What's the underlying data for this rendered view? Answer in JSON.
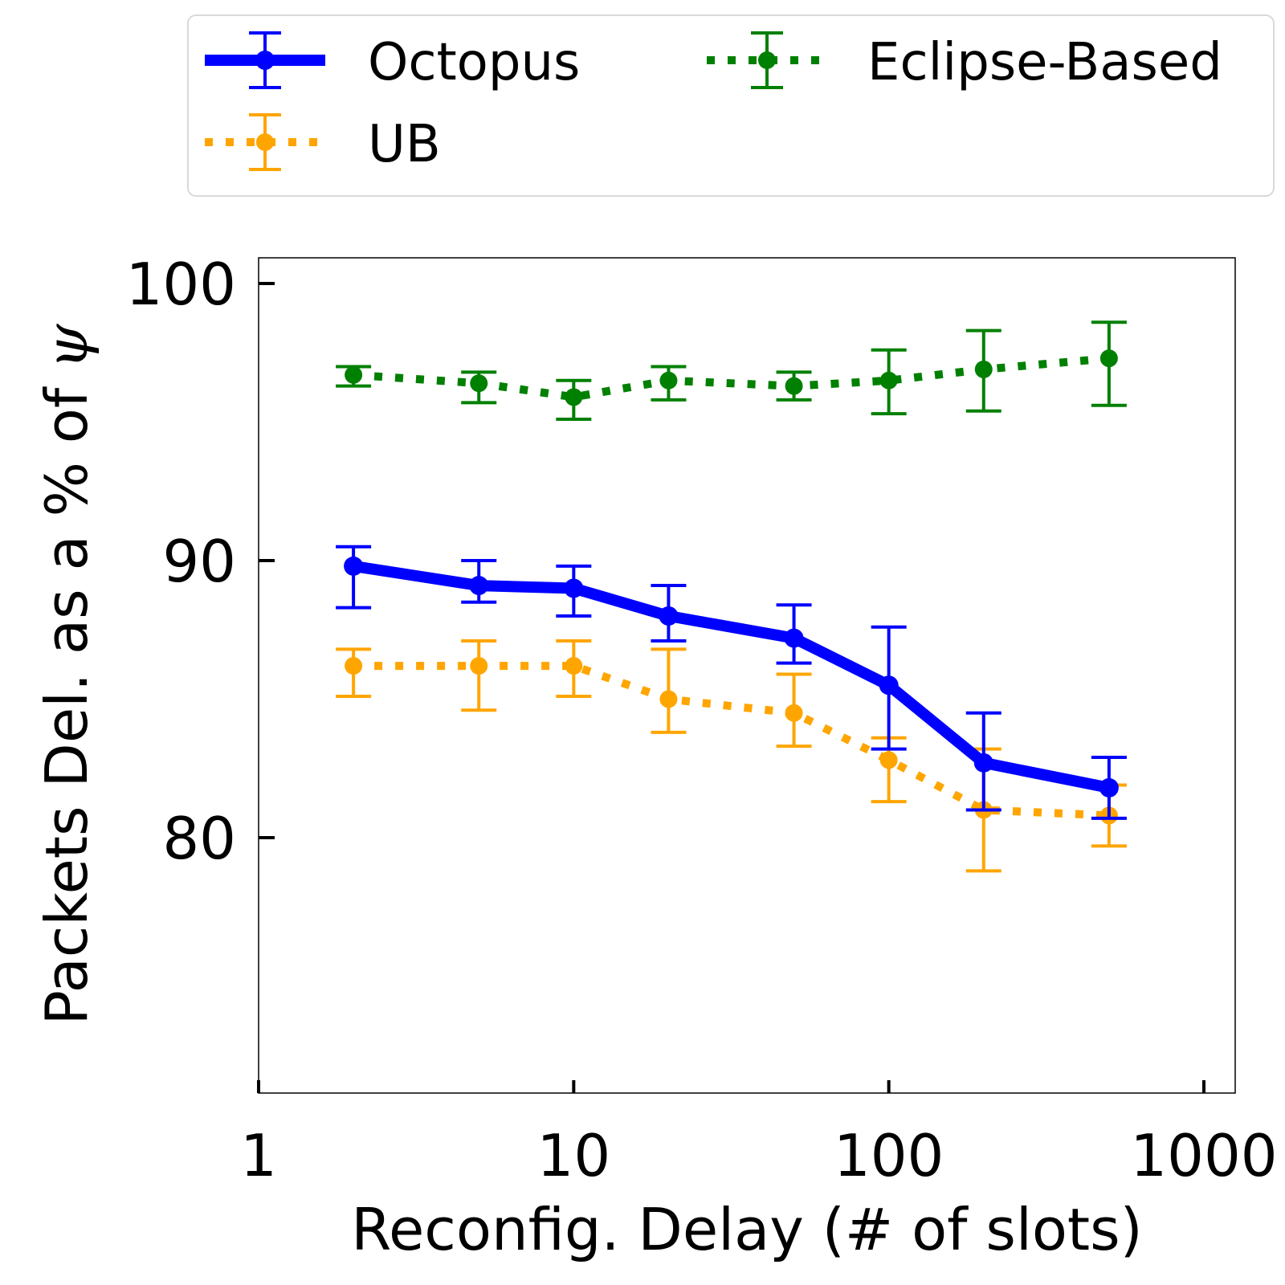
{
  "chart_data": {
    "type": "line",
    "xscale": "log",
    "xlim": [
      1,
      1000
    ],
    "ylim": [
      70.6,
      101
    ],
    "xticks": [
      1,
      10,
      100,
      1000
    ],
    "xtick_labels": [
      "1",
      "10",
      "100",
      "1000"
    ],
    "yticks": [
      80,
      90,
      100
    ],
    "ytick_labels": [
      "80",
      "90",
      "100"
    ],
    "xlabel": "Reconfig. Delay (# of slots)",
    "ylabel_main": "Packets Del. as a % of ",
    "ylabel_symbol": "ψ",
    "grid": false,
    "legend_position": "top (above plot, 2 columns)",
    "series": [
      {
        "name": "Octopus",
        "color": "#0000ff",
        "line_style": "solid",
        "x": [
          2,
          5,
          10,
          20,
          50,
          100,
          200,
          500
        ],
        "y": [
          89.8,
          89.1,
          89.0,
          88.0,
          87.2,
          85.5,
          82.7,
          81.8
        ],
        "err_low": [
          88.3,
          88.5,
          88.0,
          87.1,
          86.3,
          83.2,
          81.0,
          80.7
        ],
        "err_high": [
          90.5,
          90.0,
          89.8,
          89.1,
          88.4,
          87.6,
          84.5,
          82.9
        ]
      },
      {
        "name": "UB",
        "color": "#ffa500",
        "line_style": "dotted",
        "x": [
          2,
          5,
          10,
          20,
          50,
          100,
          200,
          500
        ],
        "y": [
          86.2,
          86.2,
          86.2,
          85.0,
          84.5,
          82.8,
          81.0,
          80.8
        ],
        "err_low": [
          85.1,
          84.6,
          85.1,
          83.8,
          83.3,
          81.3,
          78.8,
          79.7
        ],
        "err_high": [
          86.8,
          87.1,
          87.1,
          86.8,
          85.9,
          83.6,
          83.2,
          81.9
        ]
      },
      {
        "name": "Eclipse-Based",
        "color": "#008000",
        "line_style": "dotted",
        "x": [
          2,
          5,
          10,
          20,
          50,
          100,
          200,
          500
        ],
        "y": [
          96.7,
          96.4,
          95.9,
          96.5,
          96.3,
          96.5,
          96.9,
          97.3
        ],
        "err_low": [
          96.3,
          95.7,
          95.1,
          95.8,
          95.8,
          95.3,
          95.4,
          95.6
        ],
        "err_high": [
          97.0,
          96.8,
          96.5,
          97.0,
          96.8,
          97.6,
          98.3,
          98.6
        ]
      }
    ]
  }
}
